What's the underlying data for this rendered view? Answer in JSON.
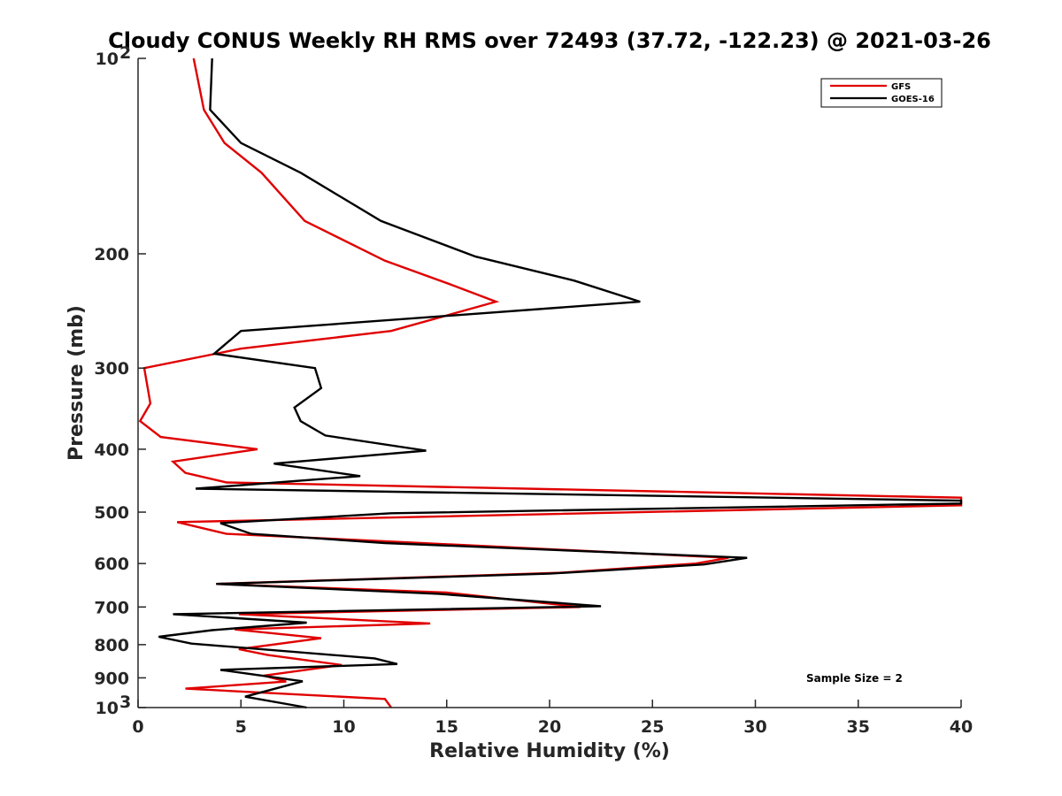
{
  "chart_data": {
    "type": "line",
    "title": "Cloudy CONUS Weekly RH RMS over 72493 (37.72, -122.23) @ 2021-03-26",
    "xlabel": "Relative Humidity (%)",
    "ylabel": "Pressure (mb)",
    "xlim": [
      0,
      40
    ],
    "ylim": [
      100,
      1000
    ],
    "y_scale": "log",
    "y_reversed": true,
    "x_ticks": [
      0,
      5,
      10,
      15,
      20,
      25,
      30,
      35,
      40
    ],
    "x_tick_labels": [
      "0",
      "5",
      "10",
      "15",
      "20",
      "25",
      "30",
      "35",
      "40"
    ],
    "y_ticks": [
      100,
      200,
      300,
      400,
      500,
      600,
      700,
      800,
      900,
      1000
    ],
    "y_tick_labels": [
      {
        "base": "10",
        "exp": "2"
      },
      {
        "base": "200"
      },
      {
        "base": "300"
      },
      {
        "base": "400"
      },
      {
        "base": "500"
      },
      {
        "base": "600"
      },
      {
        "base": "700"
      },
      {
        "base": "800"
      },
      {
        "base": "900"
      },
      {
        "base": "10",
        "exp": "3"
      }
    ],
    "grid": false,
    "legend_position": "top-right",
    "annotation": "Sample Size = 2",
    "series": [
      {
        "name": "GFS",
        "color": "#e00000",
        "points": [
          [
            2.7,
            100
          ],
          [
            3.2,
            120
          ],
          [
            4.2,
            135
          ],
          [
            6.0,
            150
          ],
          [
            8.1,
            178
          ],
          [
            12.0,
            205
          ],
          [
            15.2,
            223
          ],
          [
            17.4,
            237
          ],
          [
            12.3,
            263
          ],
          [
            5.0,
            280
          ],
          [
            0.3,
            300
          ],
          [
            0.6,
            340
          ],
          [
            0.1,
            362
          ],
          [
            1.1,
            383
          ],
          [
            5.8,
            400
          ],
          [
            1.7,
            418
          ],
          [
            2.3,
            435
          ],
          [
            4.3,
            450
          ],
          [
            40,
            475
          ],
          [
            40,
            488
          ],
          [
            1.9,
            518
          ],
          [
            4.3,
            540
          ],
          [
            12.3,
            555
          ],
          [
            28.7,
            588
          ],
          [
            27.1,
            600
          ],
          [
            20.5,
            620
          ],
          [
            3.8,
            645
          ],
          [
            15.0,
            665
          ],
          [
            21.5,
            700
          ],
          [
            4.9,
            718
          ],
          [
            14.2,
            742
          ],
          [
            4.7,
            758
          ],
          [
            8.9,
            782
          ],
          [
            4.9,
            813
          ],
          [
            6.3,
            830
          ],
          [
            9.9,
            860
          ],
          [
            6.1,
            893
          ],
          [
            7.2,
            912
          ],
          [
            2.3,
            935
          ],
          [
            12.0,
            970
          ],
          [
            12.3,
            1000
          ]
        ]
      },
      {
        "name": "GOES-16",
        "color": "#000000",
        "points": [
          [
            3.6,
            100
          ],
          [
            3.5,
            120
          ],
          [
            5.0,
            135
          ],
          [
            7.9,
            150
          ],
          [
            11.8,
            178
          ],
          [
            16.4,
            202
          ],
          [
            21.2,
            220
          ],
          [
            24.4,
            237
          ],
          [
            5.0,
            263
          ],
          [
            3.7,
            285
          ],
          [
            8.6,
            300
          ],
          [
            8.9,
            322
          ],
          [
            7.6,
            345
          ],
          [
            7.9,
            362
          ],
          [
            9.1,
            381
          ],
          [
            14.0,
            402
          ],
          [
            6.6,
            421
          ],
          [
            10.8,
            440
          ],
          [
            2.8,
            460
          ],
          [
            40,
            480
          ],
          [
            40,
            485
          ],
          [
            12.3,
            502
          ],
          [
            4.0,
            520
          ],
          [
            5.5,
            540
          ],
          [
            12.0,
            558
          ],
          [
            29.6,
            588
          ],
          [
            27.5,
            602
          ],
          [
            20.0,
            622
          ],
          [
            3.8,
            645
          ],
          [
            14.6,
            668
          ],
          [
            22.5,
            698
          ],
          [
            1.7,
            718
          ],
          [
            8.2,
            740
          ],
          [
            3.6,
            760
          ],
          [
            1.0,
            778
          ],
          [
            2.6,
            797
          ],
          [
            11.5,
            840
          ],
          [
            12.6,
            857
          ],
          [
            4.0,
            875
          ],
          [
            8.0,
            911
          ],
          [
            5.2,
            962
          ],
          [
            8.2,
            1000
          ]
        ]
      }
    ]
  }
}
